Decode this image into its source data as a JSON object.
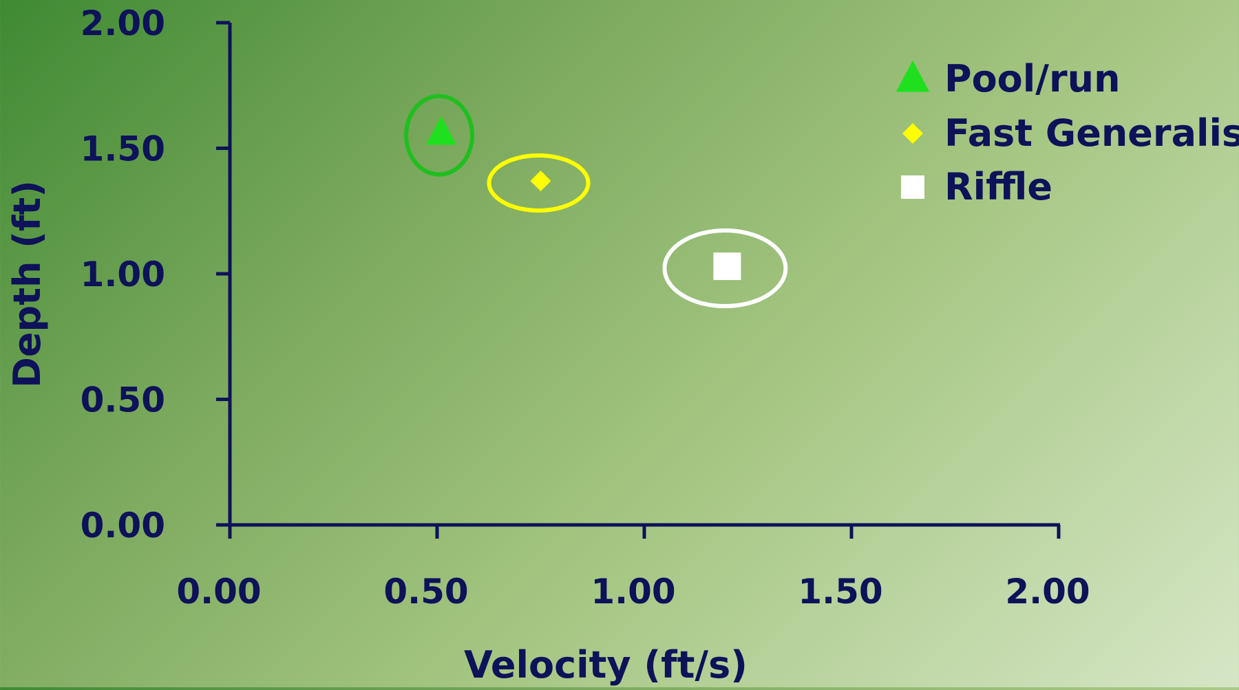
{
  "chart_data": {
    "type": "scatter",
    "title": "",
    "xlabel": "Velocity (ft/s)",
    "ylabel": "Depth (ft)",
    "xlim": [
      0,
      2
    ],
    "ylim": [
      0,
      2
    ],
    "x_ticks": [
      "0.00",
      "0.50",
      "1.00",
      "1.50",
      "2.00"
    ],
    "y_ticks": [
      "0.00",
      "0.50",
      "1.00",
      "1.50",
      "2.00"
    ],
    "grid": false,
    "legend_position": "top-right",
    "series": [
      {
        "name": "Pool/run",
        "marker": "triangle",
        "color": "#1ee01e",
        "ellipse_color": "#1fbf1f",
        "x": [
          0.51
        ],
        "y": [
          1.56
        ]
      },
      {
        "name": "Fast Generalist",
        "marker": "diamond",
        "color": "#ffff00",
        "ellipse_color": "#ffff00",
        "x": [
          0.75
        ],
        "y": [
          1.37
        ]
      },
      {
        "name": "Riffle",
        "marker": "square",
        "color": "#ffffff",
        "ellipse_color": "#ffffff",
        "x": [
          1.2
        ],
        "y": [
          1.03
        ]
      }
    ]
  }
}
